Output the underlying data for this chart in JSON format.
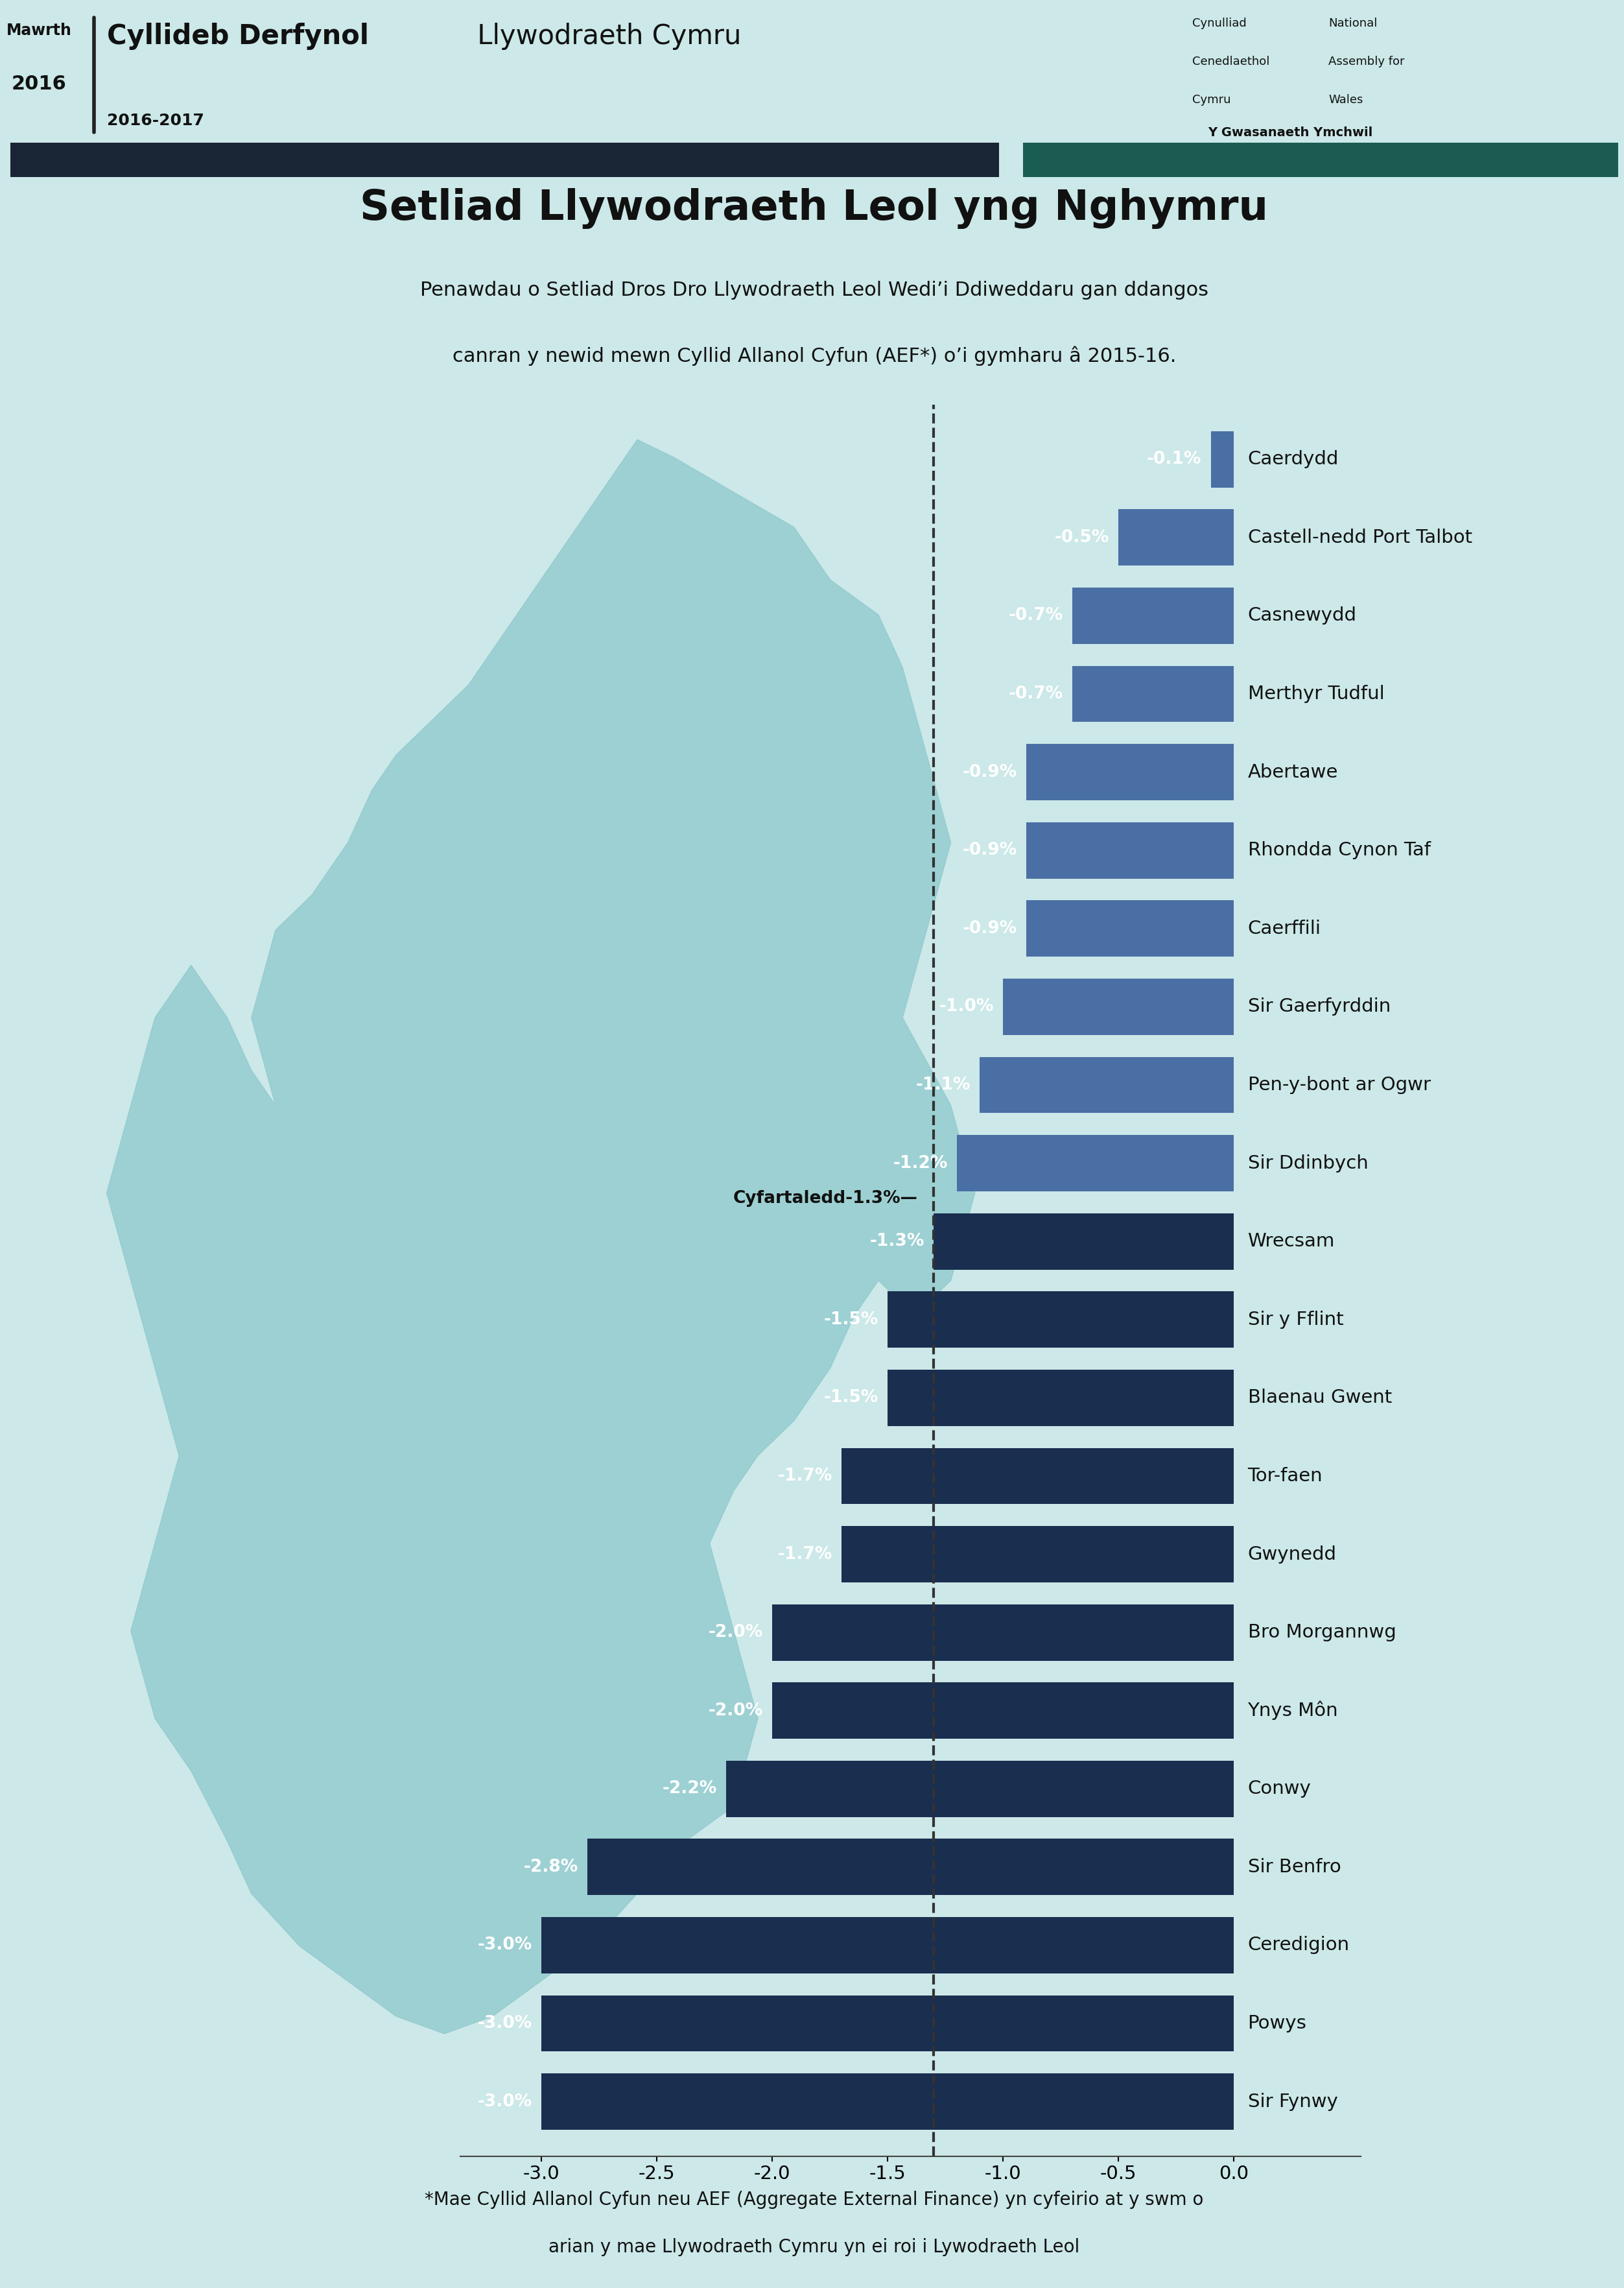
{
  "title": "Setliad Llywodraeth Leol yng Nghymru",
  "subtitle_line1": "Penawdau o Setliad Dros Dro Llywodraeth Leol Wedi’i Ddiweddaru gan ddangos",
  "subtitle_line2": "canran y newid mewn Cyllid Allanol Cyfun (AEF*) o’i gymharu â 2015-16.",
  "header_left_line1": "Mawrth",
  "header_left_line2": "2016",
  "header_title_bold": "Cyllideb Derfynol",
  "header_title_normal": " Llywodraeth Cymru",
  "header_subtitle": "2016-2017",
  "header_right_col1_line1": "Cynulliad",
  "header_right_col1_line2": "Cenedlaethol",
  "header_right_col1_line3": "Cymru",
  "header_right_col2_line1": "National",
  "header_right_col2_line2": "Assembly for",
  "header_right_col2_line3": "Wales",
  "header_right_bottom": "Y Gwasanaeth Ymchwil",
  "footer_text_line1": "*Mae Cyllid Allanol Cyfun neu AEF (Aggregate External Finance) yn cyfeirio at y swm o",
  "footer_text_line2": "arian y mae Llywodraeth Cymru yn ei roi i Lywodraeth Leol",
  "average_label": "Cyfartaledd-1.3%—",
  "average_value": -1.3,
  "categories": [
    "Caerdydd",
    "Castell-nedd Port Talbot",
    "Casnewydd",
    "Merthyr Tudful",
    "Abertawe",
    "Rhondda Cynon Taf",
    "Caerffili",
    "Sir Gaerfyrddin",
    "Pen-y-bont ar Ogwr",
    "Sir Ddinbych",
    "Wrecsam",
    "Sir y Fflint",
    "Blaenau Gwent",
    "Tor-faen",
    "Gwynedd",
    "Bro Morgannwg",
    "Ynys Môn",
    "Conwy",
    "Sir Benfro",
    "Ceredigion",
    "Powys",
    "Sir Fynwy"
  ],
  "values": [
    -0.1,
    -0.5,
    -0.7,
    -0.7,
    -0.9,
    -0.9,
    -0.9,
    -1.0,
    -1.1,
    -1.2,
    -1.3,
    -1.5,
    -1.5,
    -1.7,
    -1.7,
    -2.0,
    -2.0,
    -2.2,
    -2.8,
    -3.0,
    -3.0,
    -3.0
  ],
  "bar_color_above": "#4a6fa5",
  "bar_color_below": "#1a2e50",
  "avg_line_color": "#333333",
  "background_color": "#cce8e8",
  "header_bar_left_color": "#1a2535",
  "header_bar_right_color": "#1a5c52",
  "map_fill_color": "#8ec8cc",
  "axis_min": -3.0,
  "axis_max": 0.0,
  "axis_ticks": [
    -3.0,
    -2.5,
    -2.0,
    -1.5,
    -1.0,
    -0.5,
    0.0
  ]
}
